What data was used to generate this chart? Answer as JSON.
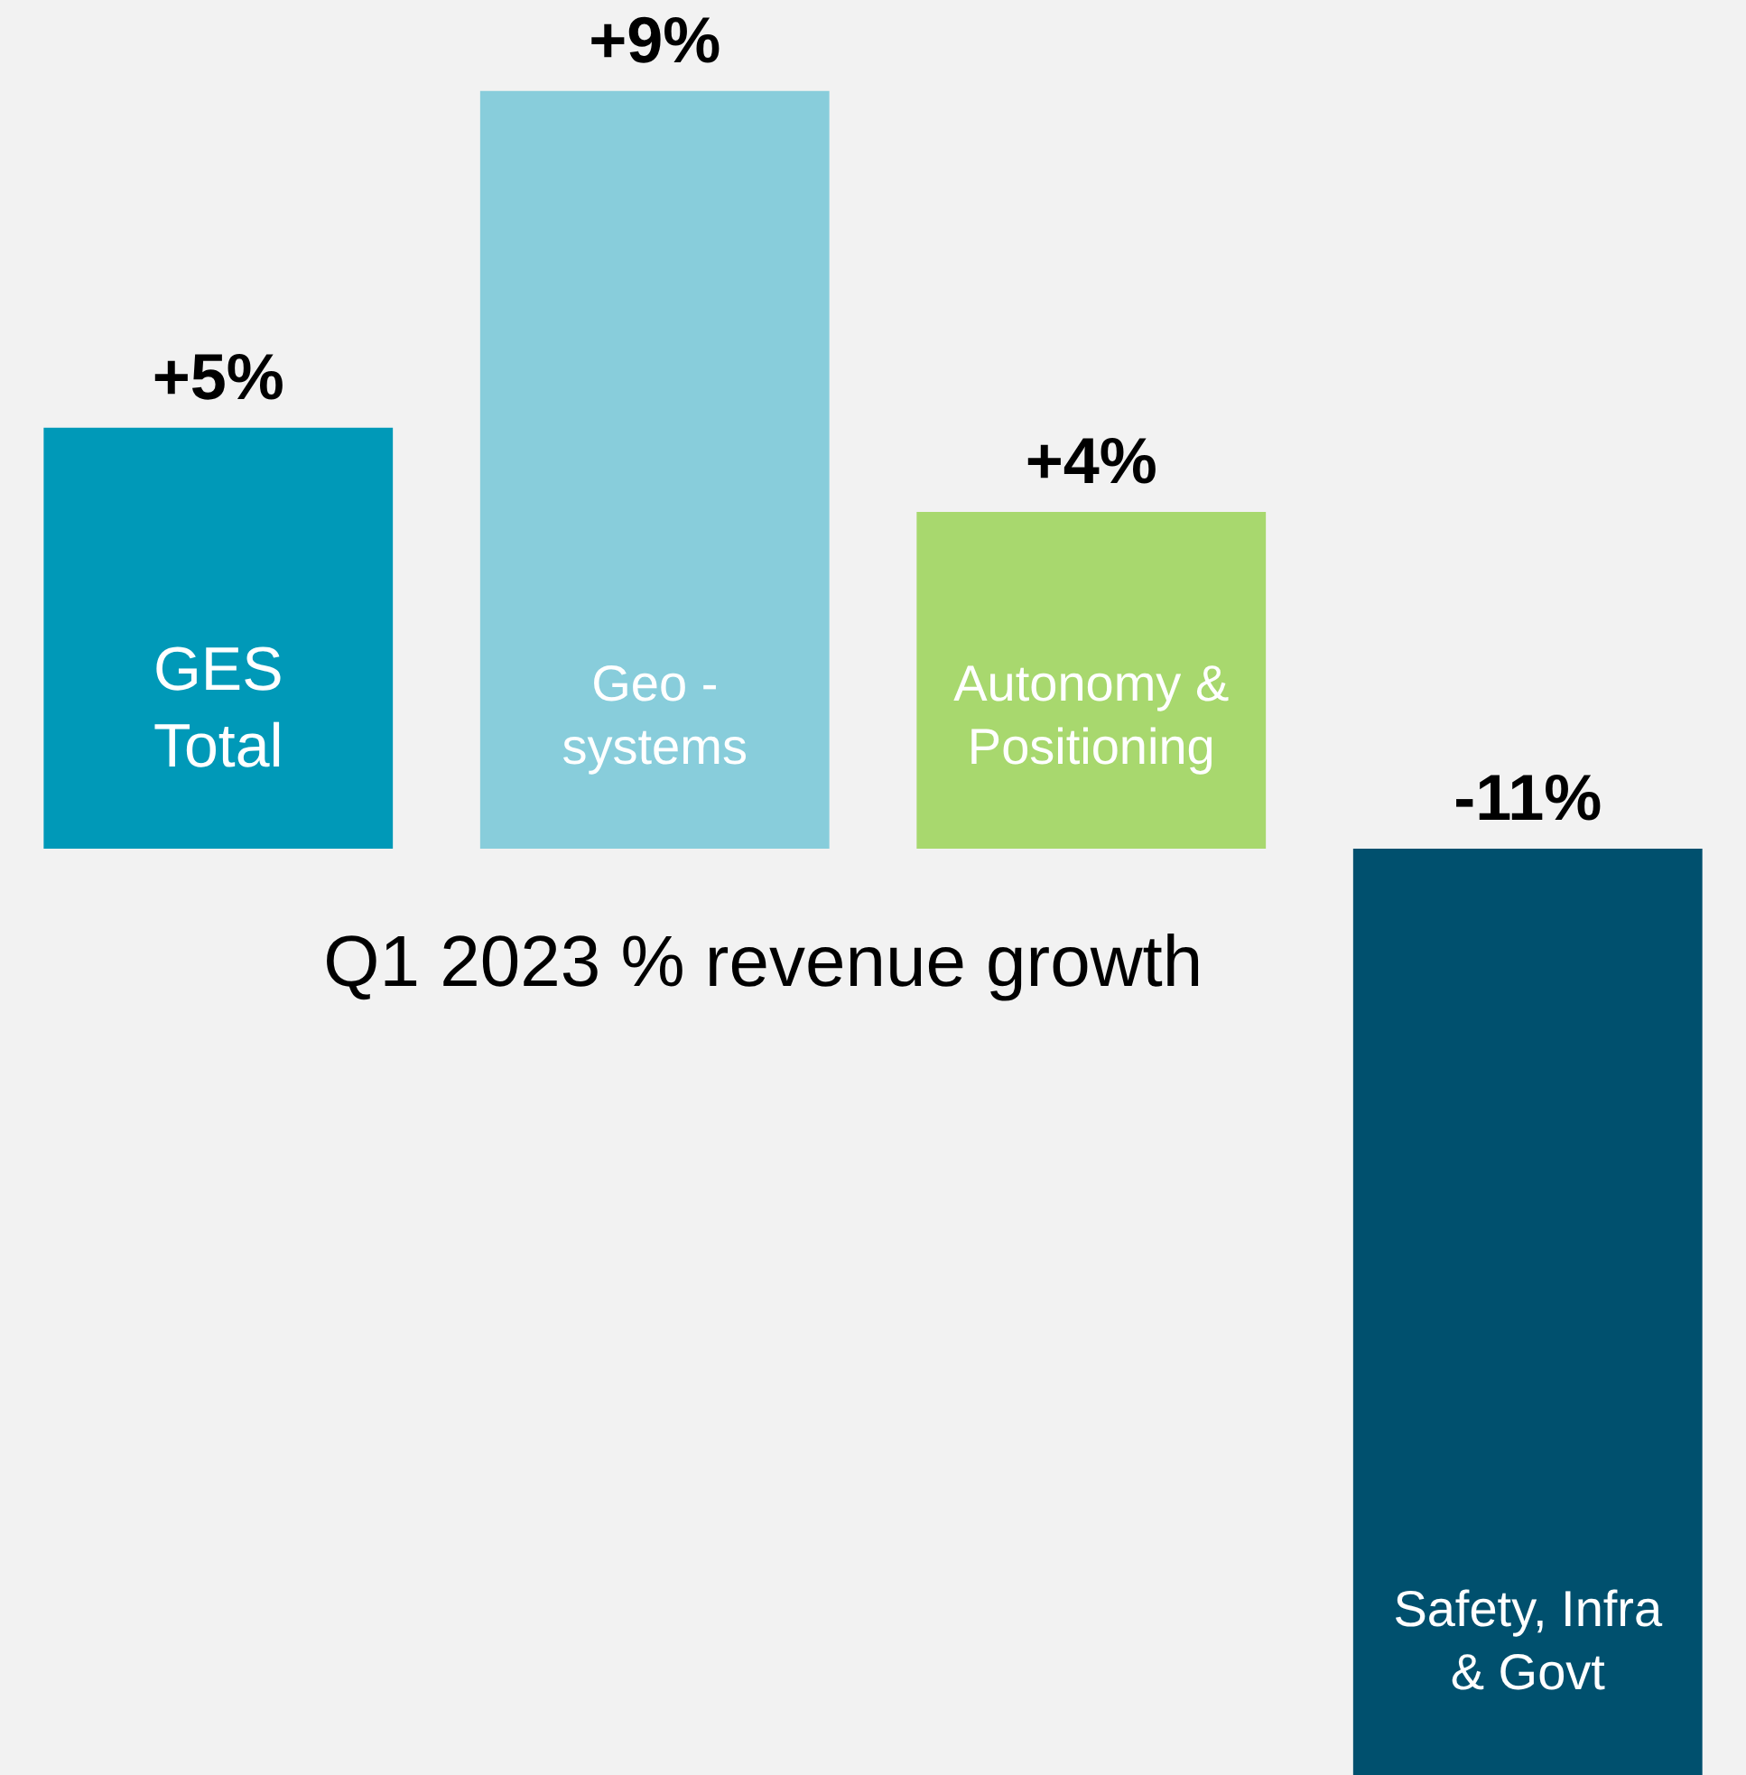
{
  "chart_data": {
    "type": "bar",
    "title": "Q1 2023 % revenue growth",
    "categories": [
      "GES\nTotal",
      "Geo -\nsystems",
      "Autonomy &\nPositioning",
      "Safety, Infra\n& Govt"
    ],
    "values": [
      5,
      9,
      4,
      -11
    ],
    "colors": [
      "#0099b8",
      "#88cddb",
      "#a8d86e",
      "#00506e"
    ],
    "value_labels": [
      "+5%",
      "+9%",
      "+4%",
      "-11%"
    ],
    "relative": false,
    "tick_labels": false,
    "grid": false,
    "legend": false
  }
}
